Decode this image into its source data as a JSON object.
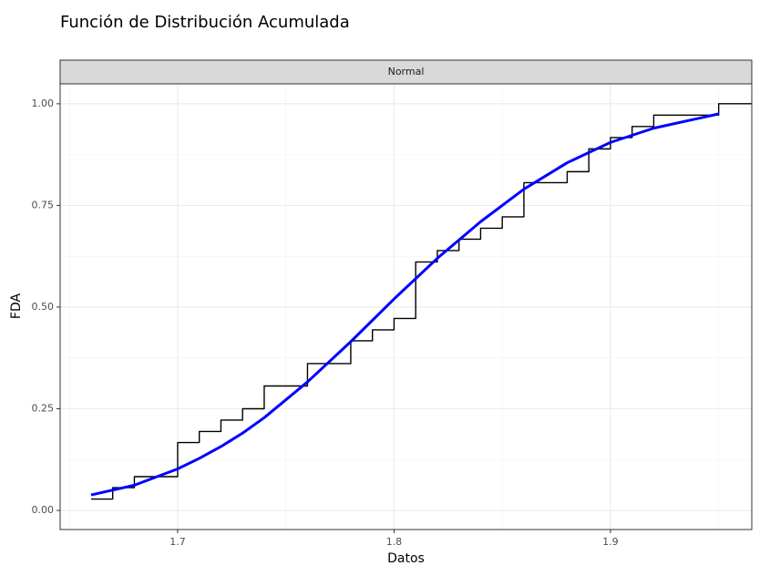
{
  "chart_data": {
    "type": "line",
    "title": "Función de Distribución Acumulada",
    "facet": "Normal",
    "x_label": "Datos",
    "y_label": "FDA",
    "xlim": [
      1.6457,
      1.9653
    ],
    "ylim": [
      -0.047,
      1.049
    ],
    "xticks": [
      1.7,
      1.8,
      1.9
    ],
    "yticks": [
      {
        "value": 0,
        "label": "0.00"
      },
      {
        "value": 0.25,
        "label": "0.25"
      },
      {
        "value": 0.5,
        "label": "0.50"
      },
      {
        "value": 0.75,
        "label": "0.75"
      },
      {
        "value": 1,
        "label": "1.00"
      }
    ],
    "grid": true,
    "minor_grid": true,
    "series": [
      {
        "color": "#000000",
        "step": true,
        "x": [
          1.66,
          1.67,
          1.68,
          1.7,
          1.71,
          1.72,
          1.73,
          1.74,
          1.76,
          1.78,
          1.79,
          1.8,
          1.81,
          1.82,
          1.83,
          1.84,
          1.85,
          1.86,
          1.88,
          1.89,
          1.9,
          1.91,
          1.92,
          1.95
        ],
        "values": [
          0.028,
          0.056,
          0.083,
          0.167,
          0.194,
          0.222,
          0.25,
          0.306,
          0.361,
          0.417,
          0.444,
          0.472,
          0.611,
          0.639,
          0.667,
          0.694,
          0.722,
          0.806,
          0.833,
          0.889,
          0.917,
          0.944,
          0.972,
          1.0
        ]
      },
      {
        "color": "#0000ff",
        "step": false,
        "x": [
          1.66,
          1.68,
          1.7,
          1.71,
          1.72,
          1.73,
          1.74,
          1.76,
          1.78,
          1.8,
          1.82,
          1.84,
          1.86,
          1.88,
          1.9,
          1.92,
          1.95
        ],
        "values": [
          0.038,
          0.062,
          0.102,
          0.128,
          0.157,
          0.19,
          0.228,
          0.316,
          0.415,
          0.52,
          0.62,
          0.71,
          0.79,
          0.855,
          0.905,
          0.94,
          0.975
        ]
      }
    ]
  }
}
